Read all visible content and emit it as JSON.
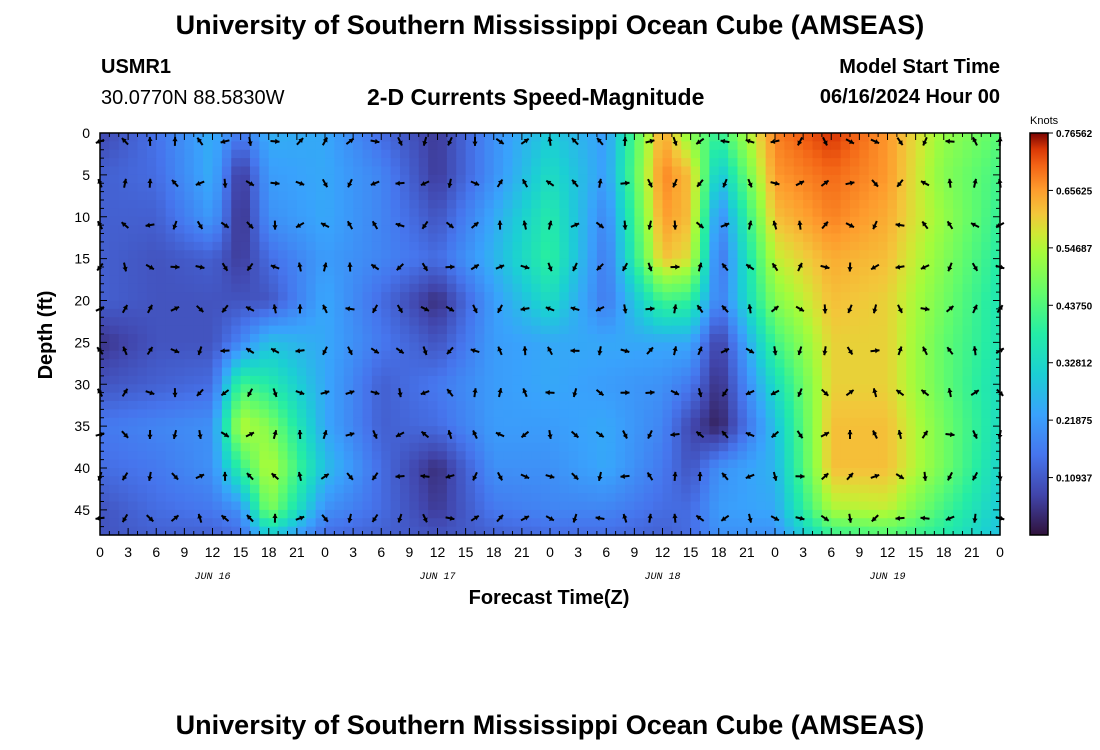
{
  "title": "University of Southern Mississippi Ocean Cube (AMSEAS)",
  "footer_title": "University of Southern Mississippi Ocean Cube (AMSEAS)",
  "station": {
    "id": "USMR1",
    "coords": "30.0770N  88.5830W"
  },
  "model": {
    "label": "Model Start Time",
    "time": "06/16/2024 Hour 00"
  },
  "chart_data": {
    "type": "heatmap",
    "title": "2-D Currents Speed-Magnitude",
    "xlabel": "Forecast Time(Z)",
    "ylabel": "Depth (ft)",
    "x_ticks": [
      "0",
      "3",
      "6",
      "9",
      "12",
      "15",
      "18",
      "21",
      "0",
      "3",
      "6",
      "9",
      "12",
      "15",
      "18",
      "21",
      "0",
      "3",
      "6",
      "9",
      "12",
      "15",
      "18",
      "21",
      "0",
      "3",
      "6",
      "9",
      "12",
      "15",
      "18",
      "21",
      "0"
    ],
    "day_labels": [
      "JUN 16",
      "JUN 17",
      "JUN 18",
      "JUN 19"
    ],
    "y_ticks": [
      "0",
      "5",
      "10",
      "15",
      "20",
      "25",
      "30",
      "35",
      "40",
      "45"
    ],
    "xlim_hours": [
      0,
      96
    ],
    "ylim_ft": [
      0,
      48
    ],
    "colorbar": {
      "label": "Knots",
      "ticks": [
        "0.76562",
        "0.65625",
        "0.54687",
        "0.43750",
        "0.32812",
        "0.21875",
        "0.10937"
      ],
      "range": [
        0,
        0.765625
      ]
    },
    "speed_samples_knots": {
      "times_hours": [
        0,
        6,
        12,
        15,
        18,
        24,
        30,
        36,
        42,
        48,
        54,
        60,
        63,
        66,
        72,
        78,
        84,
        90,
        96
      ],
      "depths_ft": [
        0,
        5,
        10,
        15,
        20,
        25,
        30,
        35,
        40,
        45,
        48
      ],
      "values": [
        [
          0.08,
          0.15,
          0.25,
          0.16,
          0.25,
          0.24,
          0.14,
          0.06,
          0.2,
          0.3,
          0.22,
          0.65,
          0.5,
          0.4,
          0.68,
          0.74,
          0.66,
          0.52,
          0.45
        ],
        [
          0.12,
          0.14,
          0.25,
          0.05,
          0.22,
          0.24,
          0.18,
          0.06,
          0.2,
          0.34,
          0.22,
          0.68,
          0.62,
          0.28,
          0.66,
          0.7,
          0.66,
          0.5,
          0.42
        ],
        [
          0.12,
          0.12,
          0.22,
          0.04,
          0.2,
          0.24,
          0.18,
          0.1,
          0.24,
          0.38,
          0.18,
          0.66,
          0.62,
          0.18,
          0.62,
          0.68,
          0.64,
          0.52,
          0.4
        ],
        [
          0.12,
          0.1,
          0.12,
          0.06,
          0.14,
          0.22,
          0.18,
          0.14,
          0.26,
          0.4,
          0.16,
          0.62,
          0.58,
          0.14,
          0.56,
          0.64,
          0.62,
          0.5,
          0.38
        ],
        [
          0.12,
          0.1,
          0.1,
          0.1,
          0.1,
          0.24,
          0.14,
          0.04,
          0.22,
          0.34,
          0.16,
          0.42,
          0.4,
          0.16,
          0.5,
          0.62,
          0.6,
          0.48,
          0.36
        ],
        [
          0.05,
          0.1,
          0.1,
          0.18,
          0.28,
          0.24,
          0.16,
          0.1,
          0.22,
          0.24,
          0.24,
          0.24,
          0.24,
          0.06,
          0.42,
          0.6,
          0.6,
          0.46,
          0.36
        ],
        [
          0.1,
          0.12,
          0.14,
          0.42,
          0.38,
          0.24,
          0.12,
          0.16,
          0.22,
          0.24,
          0.22,
          0.2,
          0.16,
          0.04,
          0.34,
          0.6,
          0.6,
          0.46,
          0.34
        ],
        [
          0.16,
          0.18,
          0.2,
          0.56,
          0.5,
          0.24,
          0.12,
          0.14,
          0.22,
          0.22,
          0.24,
          0.18,
          0.08,
          0.02,
          0.28,
          0.62,
          0.62,
          0.48,
          0.34
        ],
        [
          0.14,
          0.16,
          0.2,
          0.4,
          0.56,
          0.28,
          0.14,
          0.04,
          0.2,
          0.2,
          0.24,
          0.16,
          0.1,
          0.2,
          0.26,
          0.62,
          0.62,
          0.48,
          0.32
        ],
        [
          0.1,
          0.14,
          0.16,
          0.2,
          0.5,
          0.2,
          0.14,
          0.06,
          0.16,
          0.18,
          0.18,
          0.14,
          0.14,
          0.22,
          0.24,
          0.54,
          0.56,
          0.42,
          0.3
        ],
        [
          0.1,
          0.12,
          0.12,
          0.14,
          0.3,
          0.14,
          0.12,
          0.1,
          0.12,
          0.14,
          0.14,
          0.12,
          0.14,
          0.2,
          0.2,
          0.4,
          0.44,
          0.38,
          0.28
        ]
      ]
    }
  }
}
